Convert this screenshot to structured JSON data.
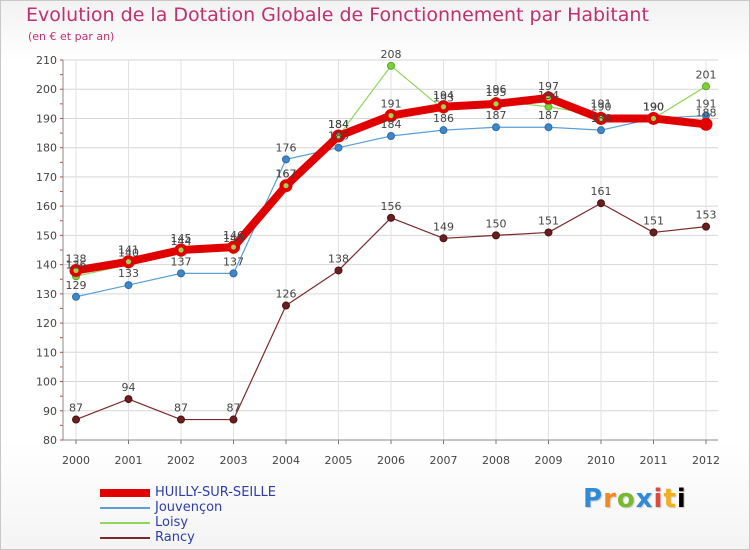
{
  "chart_data": {
    "type": "line",
    "title": "Evolution de la Dotation Globale de Fonctionnement par Habitant",
    "subtitle": "(en € et par an)",
    "xlabel": "",
    "ylabel": "",
    "categories": [
      "2000",
      "2001",
      "2002",
      "2003",
      "2004",
      "2005",
      "2006",
      "2007",
      "2008",
      "2009",
      "2010",
      "2011",
      "2012"
    ],
    "ylim": [
      80,
      210
    ],
    "yticks": [
      80,
      90,
      100,
      110,
      120,
      130,
      140,
      150,
      160,
      170,
      180,
      190,
      200,
      210
    ],
    "grid": true,
    "legend_position": "bottom-left",
    "series": [
      {
        "name": "HUILLY-SUR-SEILLE",
        "color": "#e00000",
        "values": [
          138,
          141,
          145,
          146,
          167,
          184,
          191,
          194,
          195,
          197,
          190,
          190,
          188
        ]
      },
      {
        "name": "Jouvençon",
        "color": "#5a9fd8",
        "values": [
          129,
          133,
          137,
          137,
          176,
          180,
          184,
          186,
          187,
          187,
          186,
          190,
          191
        ]
      },
      {
        "name": "Loisy",
        "color": "#8fd65a",
        "values": [
          136,
          140,
          144,
          145,
          167,
          184,
          208,
          193,
          196,
          194,
          191,
          190,
          201
        ]
      },
      {
        "name": "Rancy",
        "color": "#7a2a2a",
        "values": [
          87,
          94,
          87,
          87,
          126,
          138,
          156,
          149,
          150,
          151,
          161,
          151,
          153
        ]
      }
    ]
  },
  "logo": {
    "letters": [
      "P",
      "r",
      "o",
      "x",
      "i",
      "t",
      "i"
    ]
  }
}
